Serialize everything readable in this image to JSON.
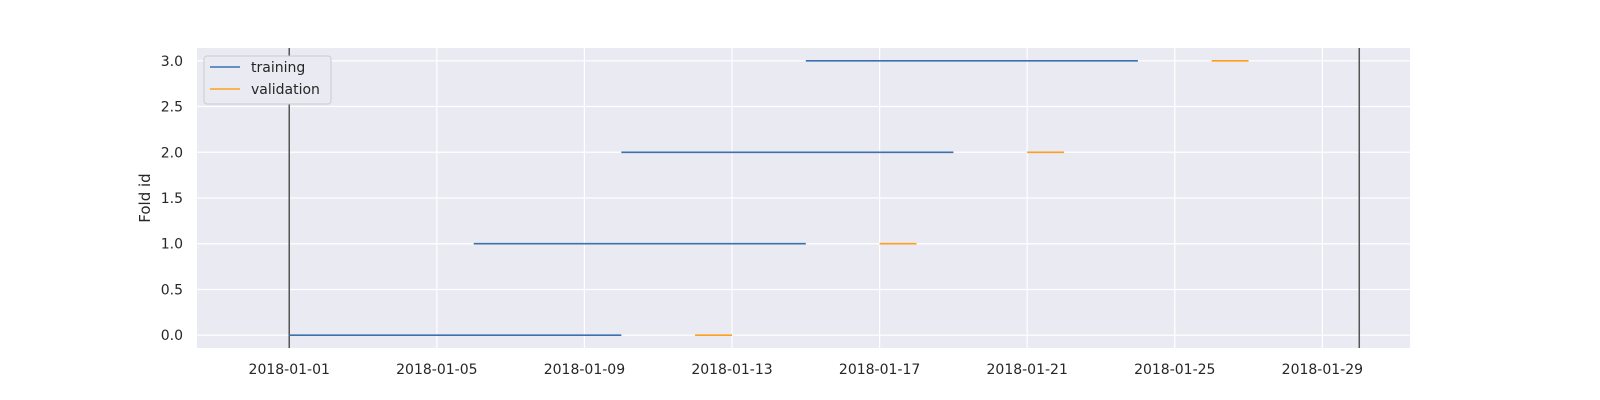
{
  "colors": {
    "plot_bg": "#EAEAF2",
    "grid": "#FFFFFF",
    "training": "#3A72B0",
    "validation": "#FF9F1C",
    "boundary": "#555555",
    "legend_bg": "#EAEAF2",
    "legend_border": "#CCCCCC"
  },
  "chart_data": {
    "type": "line",
    "title": "",
    "xlabel": "",
    "ylabel": "Fold id",
    "x_type": "date",
    "xlim": [
      "2017-12-29T12:00",
      "2018-01-31T09:00"
    ],
    "ylim": [
      -0.14,
      3.14
    ],
    "x_ticks": [
      "2018-01-01",
      "2018-01-05",
      "2018-01-09",
      "2018-01-13",
      "2018-01-17",
      "2018-01-21",
      "2018-01-25",
      "2018-01-29"
    ],
    "y_ticks": [
      0.0,
      0.5,
      1.0,
      1.5,
      2.0,
      2.5,
      3.0
    ],
    "y_tick_labels": [
      "0.0",
      "0.5",
      "1.0",
      "1.5",
      "2.0",
      "2.5",
      "3.0"
    ],
    "grid": true,
    "legend": "upper-left",
    "series": [
      {
        "name": "training",
        "color_key": "training",
        "segments": [
          {
            "fold": 0,
            "start": "2018-01-01",
            "end": "2018-01-10"
          },
          {
            "fold": 1,
            "start": "2018-01-06",
            "end": "2018-01-15"
          },
          {
            "fold": 2,
            "start": "2018-01-10",
            "end": "2018-01-19"
          },
          {
            "fold": 3,
            "start": "2018-01-15",
            "end": "2018-01-24"
          }
        ]
      },
      {
        "name": "validation",
        "color_key": "validation",
        "segments": [
          {
            "fold": 0,
            "start": "2018-01-12",
            "end": "2018-01-13"
          },
          {
            "fold": 1,
            "start": "2018-01-17",
            "end": "2018-01-18"
          },
          {
            "fold": 2,
            "start": "2018-01-21",
            "end": "2018-01-22"
          },
          {
            "fold": 3,
            "start": "2018-01-26",
            "end": "2018-01-27"
          }
        ]
      }
    ],
    "vertical_lines": [
      "2018-01-01",
      "2018-01-30"
    ]
  }
}
